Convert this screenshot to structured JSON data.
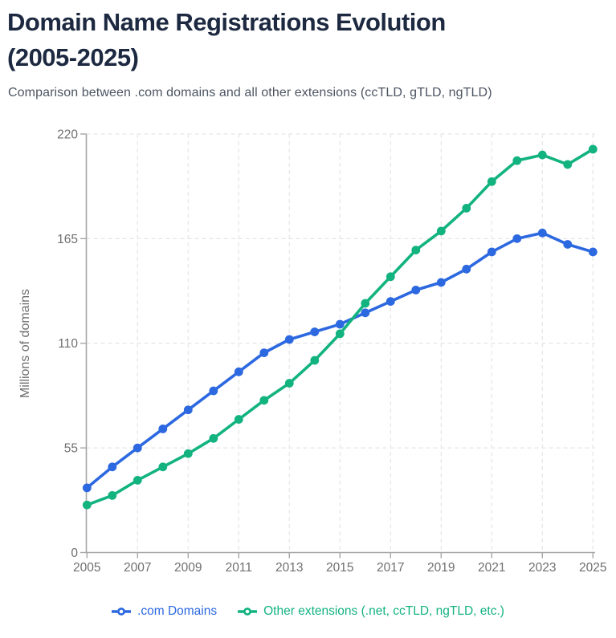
{
  "header": {
    "title_line1": "Domain Name Registrations Evolution",
    "title_line2": "(2005-2025)",
    "subtitle": "Comparison between .com domains and all other extensions (ccTLD, gTLD, ngTLD)"
  },
  "chart_data": {
    "type": "line",
    "x": [
      2005,
      2006,
      2007,
      2008,
      2009,
      2010,
      2011,
      2012,
      2013,
      2014,
      2015,
      2016,
      2017,
      2018,
      2019,
      2020,
      2021,
      2022,
      2023,
      2024,
      2025
    ],
    "series": [
      {
        "name": ".com Domains",
        "color": "#2c68e0",
        "values": [
          34,
          45,
          55,
          65,
          75,
          85,
          95,
          105,
          112,
          116,
          120,
          126,
          132,
          138,
          142,
          149,
          158,
          165,
          168,
          162,
          158
        ]
      },
      {
        "name": "Other extensions (.net, ccTLD, ngTLD, etc.)",
        "color": "#13b380",
        "values": [
          25,
          30,
          38,
          45,
          52,
          60,
          70,
          80,
          89,
          101,
          115,
          131,
          145,
          159,
          169,
          181,
          195,
          206,
          209,
          204,
          212
        ]
      }
    ],
    "title": "Domain Name Registrations Evolution (2005-2025)",
    "xlabel": "",
    "ylabel": "Millions of domains",
    "ylim": [
      0,
      220
    ],
    "yticks": [
      0,
      55,
      110,
      165,
      220
    ],
    "xticks": [
      2005,
      2007,
      2009,
      2011,
      2013,
      2015,
      2017,
      2019,
      2021,
      2023,
      2025
    ],
    "grid": true,
    "legend_position": "bottom",
    "axis_color": "#a6a6a6",
    "grid_color": "#e5e5e5",
    "tick_label_color": "#6f6f6f"
  }
}
